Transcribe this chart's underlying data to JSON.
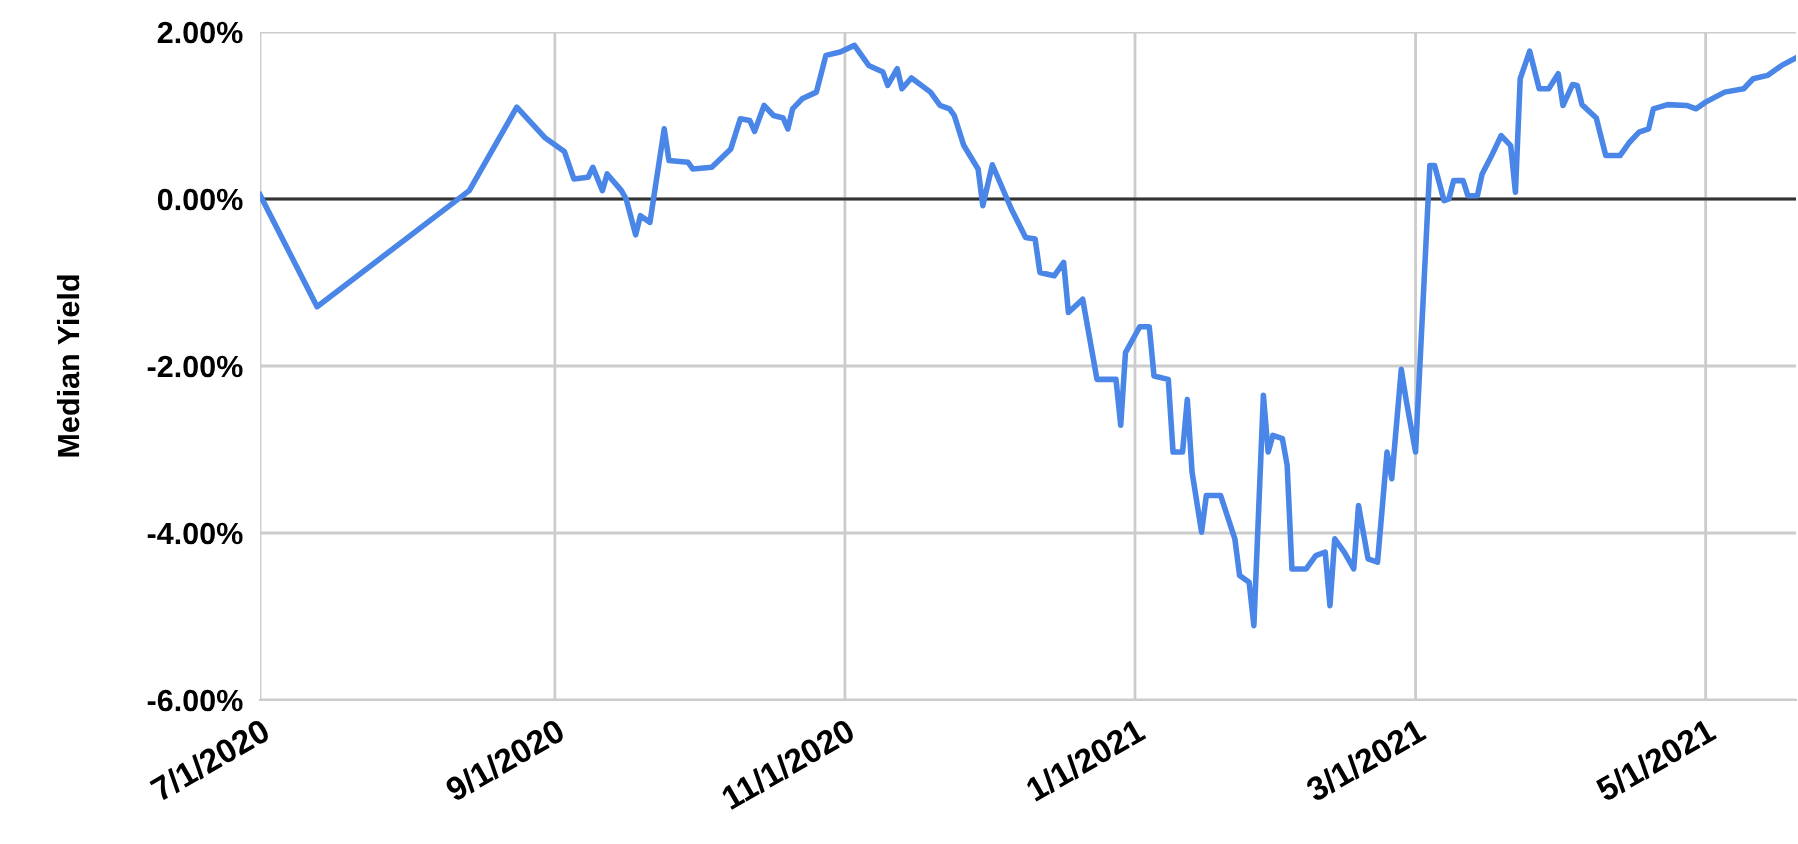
{
  "chart_data": {
    "type": "line",
    "ylabel": "Median Yield",
    "x": [
      "2020-07-01",
      "2020-07-13",
      "2020-08-14",
      "2020-08-24",
      "2020-08-30",
      "2020-09-03",
      "2020-09-05",
      "2020-09-08",
      "2020-09-09",
      "2020-09-11",
      "2020-09-12",
      "2020-09-15",
      "2020-09-16",
      "2020-09-18",
      "2020-09-19",
      "2020-09-21",
      "2020-09-24",
      "2020-09-25",
      "2020-09-29",
      "2020-09-30",
      "2020-10-04",
      "2020-10-08",
      "2020-10-10",
      "2020-10-12",
      "2020-10-13",
      "2020-10-15",
      "2020-10-17",
      "2020-10-19",
      "2020-10-20",
      "2020-10-21",
      "2020-10-23",
      "2020-10-26",
      "2020-10-28",
      "2020-10-31",
      "2020-11-03",
      "2020-11-06",
      "2020-11-09",
      "2020-11-10",
      "2020-11-12",
      "2020-11-13",
      "2020-11-15",
      "2020-11-19",
      "2020-11-21",
      "2020-11-23",
      "2020-11-24",
      "2020-11-26",
      "2020-11-29",
      "2020-11-30",
      "2020-12-02",
      "2020-12-06",
      "2020-12-09",
      "2020-12-11",
      "2020-12-12",
      "2020-12-15",
      "2020-12-17",
      "2020-12-18",
      "2020-12-21",
      "2020-12-24",
      "2020-12-28",
      "2020-12-29",
      "2020-12-30",
      "2021-01-02",
      "2021-01-04",
      "2021-01-05",
      "2021-01-08",
      "2021-01-09",
      "2021-01-11",
      "2021-01-12",
      "2021-01-13",
      "2021-01-15",
      "2021-01-16",
      "2021-01-19",
      "2021-01-22",
      "2021-01-23",
      "2021-01-25",
      "2021-01-26",
      "2021-01-28",
      "2021-01-29",
      "2021-01-30",
      "2021-02-01",
      "2021-02-02",
      "2021-02-03",
      "2021-02-06",
      "2021-02-08",
      "2021-02-10",
      "2021-02-11",
      "2021-02-12",
      "2021-02-14",
      "2021-02-16",
      "2021-02-17",
      "2021-02-19",
      "2021-02-21",
      "2021-02-23",
      "2021-02-24",
      "2021-02-26",
      "2021-02-27",
      "2021-03-01",
      "2021-03-04",
      "2021-03-05",
      "2021-03-07",
      "2021-03-08",
      "2021-03-09",
      "2021-03-11",
      "2021-03-12",
      "2021-03-14",
      "2021-03-15",
      "2021-03-17",
      "2021-03-19",
      "2021-03-21",
      "2021-03-22",
      "2021-03-23",
      "2021-03-25",
      "2021-03-27",
      "2021-03-29",
      "2021-03-31",
      "2021-04-01",
      "2021-04-03",
      "2021-04-04",
      "2021-04-05",
      "2021-04-08",
      "2021-04-10",
      "2021-04-13",
      "2021-04-15",
      "2021-04-17",
      "2021-04-19",
      "2021-04-20",
      "2021-04-23",
      "2021-04-27",
      "2021-04-29",
      "2021-05-01",
      "2021-05-05",
      "2021-05-09",
      "2021-05-11",
      "2021-05-14",
      "2021-05-17",
      "2021-05-20"
    ],
    "series": [
      {
        "color": "#4a86e8",
        "values": [
          0.05,
          -1.29,
          0.1,
          1.1,
          0.73,
          0.57,
          0.24,
          0.26,
          0.38,
          0.1,
          0.3,
          0.1,
          0,
          -0.43,
          -0.2,
          -0.28,
          0.84,
          0.46,
          0.44,
          0.36,
          0.38,
          0.6,
          0.96,
          0.94,
          0.81,
          1.12,
          1.0,
          0.97,
          0.84,
          1.08,
          1.2,
          1.28,
          1.72,
          1.76,
          1.84,
          1.6,
          1.52,
          1.36,
          1.56,
          1.32,
          1.45,
          1.28,
          1.12,
          1.08,
          1.0,
          0.64,
          0.36,
          -0.08,
          0.41,
          -0.12,
          -0.46,
          -0.48,
          -0.88,
          -0.92,
          -0.76,
          -1.36,
          -1.2,
          -2.16,
          -2.16,
          -2.71,
          -1.84,
          -1.53,
          -1.53,
          -2.12,
          -2.16,
          -3.03,
          -3.03,
          -2.4,
          -3.27,
          -3.99,
          -3.55,
          -3.55,
          -4.07,
          -4.51,
          -4.59,
          -5.11,
          -2.35,
          -3.03,
          -2.83,
          -2.87,
          -3.19,
          -4.43,
          -4.43,
          -4.27,
          -4.23,
          -4.87,
          -4.07,
          -4.23,
          -4.43,
          -3.67,
          -4.31,
          -4.35,
          -3.03,
          -3.35,
          -2.04,
          -2.4,
          -3.03,
          0.4,
          0.4,
          -0.02,
          0,
          0.22,
          0.22,
          0.04,
          0.04,
          0.3,
          0.52,
          0.76,
          0.64,
          0.08,
          1.44,
          1.77,
          1.32,
          1.32,
          1.5,
          1.12,
          1.37,
          1.36,
          1.13,
          0.97,
          0.52,
          0.52,
          0.68,
          0.8,
          0.84,
          1.08,
          1.13,
          1.12,
          1.08,
          1.16,
          1.28,
          1.32,
          1.44,
          1.48,
          1.6,
          1.69
        ]
      }
    ],
    "xlim": [
      "2020-07-01",
      "2021-05-20"
    ],
    "xticks": [
      {
        "value": "2020-07-01",
        "label": "7/1/2020"
      },
      {
        "value": "2020-09-01",
        "label": "9/1/2020"
      },
      {
        "value": "2020-11-01",
        "label": "11/1/2020"
      },
      {
        "value": "2021-01-01",
        "label": "1/1/2021"
      },
      {
        "value": "2021-03-01",
        "label": "3/1/2021"
      },
      {
        "value": "2021-05-01",
        "label": "5/1/2021"
      }
    ],
    "ylim": [
      -6,
      2
    ],
    "yticks": [
      {
        "value": 2,
        "label": "2.00%"
      },
      {
        "value": 0,
        "label": "0.00%"
      },
      {
        "value": -2,
        "label": "-2.00%"
      },
      {
        "value": -4,
        "label": "-4.00%"
      },
      {
        "value": -6,
        "label": "-6.00%"
      }
    ],
    "ref_lines": [
      {
        "axis": "y",
        "value": 0,
        "color": "#333333"
      }
    ],
    "grid": true,
    "legend": false,
    "marker": "none",
    "line_style": "solid"
  }
}
